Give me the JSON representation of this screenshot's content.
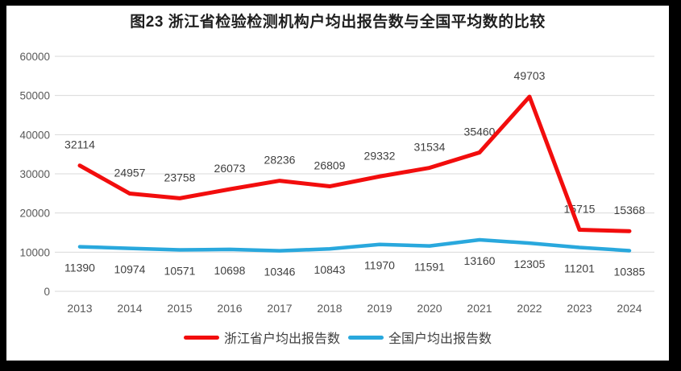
{
  "chart_data": {
    "type": "line",
    "title": "图23  浙江省检验检测机构户均出报告数与全国平均数的比较",
    "categories": [
      "2013",
      "2014",
      "2015",
      "2016",
      "2017",
      "2018",
      "2019",
      "2020",
      "2021",
      "2022",
      "2023",
      "2024"
    ],
    "series": [
      {
        "name": "浙江省户均出报告数",
        "color": "#f20d0d",
        "label_position": "above",
        "values": [
          32114,
          24957,
          23758,
          26073,
          28236,
          26809,
          29332,
          31534,
          35460,
          49703,
          15715,
          15368
        ]
      },
      {
        "name": "全国户均出报告数",
        "color": "#29a8dd",
        "label_position": "below",
        "values": [
          11390,
          10974,
          10571,
          10698,
          10346,
          10843,
          11970,
          11591,
          13160,
          12305,
          11201,
          10385
        ]
      }
    ],
    "ylim": [
      0,
      60000
    ],
    "yticks": [
      0,
      10000,
      20000,
      30000,
      40000,
      50000,
      60000
    ],
    "grid": true,
    "legend_position": "bottom"
  },
  "styles": {
    "frame_border_color": "#000000",
    "background_color": "#ffffff",
    "grid_color": "#d9d9d9",
    "tick_color": "#595959",
    "label_color": "#3f3f3f",
    "title_color": "#1f1f1f"
  }
}
